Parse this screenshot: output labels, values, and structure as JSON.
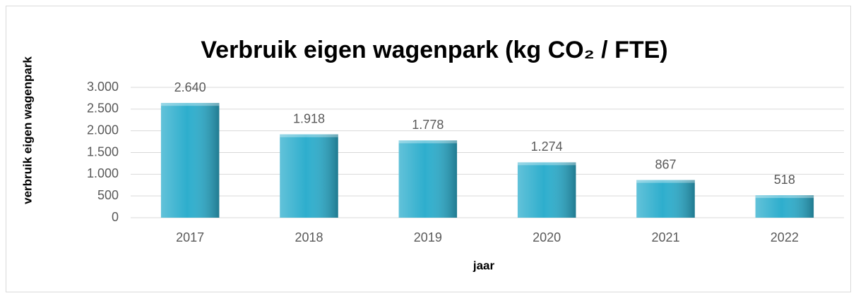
{
  "chart_data": {
    "type": "bar",
    "title": "Verbruik eigen wagenpark (kg CO₂ / FTE)",
    "x_label": "jaar",
    "y_label": "verbruik eigen wagenpark",
    "categories": [
      "2017",
      "2018",
      "2019",
      "2020",
      "2021",
      "2022"
    ],
    "values": [
      2640,
      1918,
      1778,
      1274,
      867,
      518
    ],
    "value_labels": [
      "2.640",
      "1.918",
      "1.778",
      "1.274",
      "867",
      "518"
    ],
    "color": "#2eaecd",
    "ylim": [
      0,
      3000
    ],
    "yticks": [
      0,
      500,
      {
        "value": 1000,
        "label": "1.000"
      },
      {
        "value": 1500,
        "label": "1.500"
      },
      {
        "value": 2000,
        "label": "2.000"
      },
      {
        "value": 2500,
        "label": "2.500"
      },
      {
        "value": 3000,
        "label": "3.000"
      }
    ],
    "grid": true
  }
}
